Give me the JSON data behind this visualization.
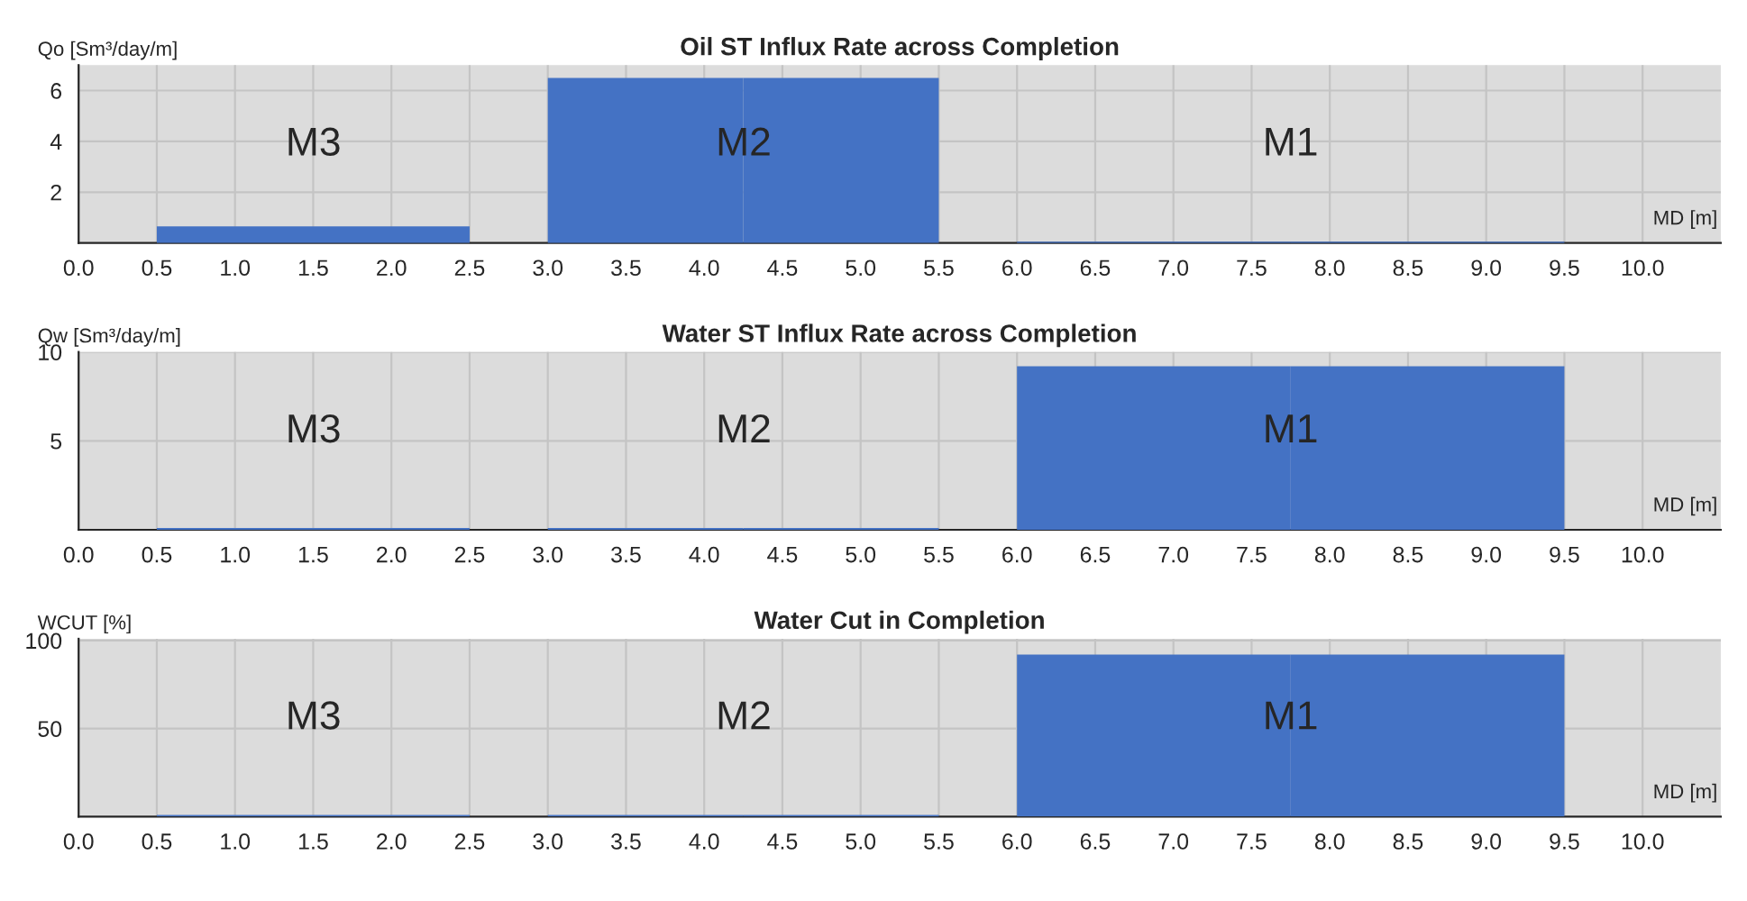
{
  "chart_data": [
    {
      "type": "histogram",
      "title": "Oil ST Influx Rate across Completion",
      "ylabel": "Qo [Sm³/day/m]",
      "xlabel": "MD [m]",
      "color": "#4472c4",
      "bins": [
        0.5,
        2.5,
        3.0,
        4.25,
        5.5,
        6.0,
        7.75,
        9.5
      ],
      "values": [
        0.65,
        0,
        6.5,
        6.5,
        0,
        0.05,
        0.05
      ],
      "xlim": [
        0,
        10.5
      ],
      "xticks": [
        {
          "value": 0,
          "label": "0.0"
        },
        {
          "value": 0.5,
          "label": "0.5"
        },
        {
          "value": 1,
          "label": "1.0"
        },
        {
          "value": 1.5,
          "label": "1.5"
        },
        {
          "value": 2,
          "label": "2.0"
        },
        {
          "value": 2.5,
          "label": "2.5"
        },
        {
          "value": 3,
          "label": "3.0"
        },
        {
          "value": 3.5,
          "label": "3.5"
        },
        {
          "value": 4,
          "label": "4.0"
        },
        {
          "value": 4.5,
          "label": "4.5"
        },
        {
          "value": 5,
          "label": "5.0"
        },
        {
          "value": 5.5,
          "label": "5.5"
        },
        {
          "value": 6,
          "label": "6.0"
        },
        {
          "value": 6.5,
          "label": "6.5"
        },
        {
          "value": 7,
          "label": "7.0"
        },
        {
          "value": 7.5,
          "label": "7.5"
        },
        {
          "value": 8,
          "label": "8.0"
        },
        {
          "value": 8.5,
          "label": "8.5"
        },
        {
          "value": 9,
          "label": "9.0"
        },
        {
          "value": 9.5,
          "label": "9.5"
        },
        {
          "value": 10,
          "label": "10.0"
        }
      ],
      "ylim": [
        0,
        7
      ],
      "yticks": [
        2,
        4,
        6
      ],
      "grid": true,
      "annotations": [
        "M3",
        "M2",
        "M1"
      ]
    },
    {
      "type": "histogram",
      "title": "Water ST Influx Rate across Completion",
      "ylabel": "Qw [Sm³/day/m]",
      "xlabel": "MD [m]",
      "color": "#4472c4",
      "bins": [
        0.5,
        2.5,
        3.0,
        4.25,
        5.5,
        6.0,
        7.75,
        9.5
      ],
      "values": [
        0.1,
        0,
        0.1,
        0.1,
        0,
        9.2,
        9.2
      ],
      "xlim": [
        0,
        10.5
      ],
      "xticks": [
        {
          "value": 0,
          "label": "0.0"
        },
        {
          "value": 0.5,
          "label": "0.5"
        },
        {
          "value": 1,
          "label": "1.0"
        },
        {
          "value": 1.5,
          "label": "1.5"
        },
        {
          "value": 2,
          "label": "2.0"
        },
        {
          "value": 2.5,
          "label": "2.5"
        },
        {
          "value": 3,
          "label": "3.0"
        },
        {
          "value": 3.5,
          "label": "3.5"
        },
        {
          "value": 4,
          "label": "4.0"
        },
        {
          "value": 4.5,
          "label": "4.5"
        },
        {
          "value": 5,
          "label": "5.0"
        },
        {
          "value": 5.5,
          "label": "5.5"
        },
        {
          "value": 6,
          "label": "6.0"
        },
        {
          "value": 6.5,
          "label": "6.5"
        },
        {
          "value": 7,
          "label": "7.0"
        },
        {
          "value": 7.5,
          "label": "7.5"
        },
        {
          "value": 8,
          "label": "8.0"
        },
        {
          "value": 8.5,
          "label": "8.5"
        },
        {
          "value": 9,
          "label": "9.0"
        },
        {
          "value": 9.5,
          "label": "9.5"
        },
        {
          "value": 10,
          "label": "10.0"
        }
      ],
      "ylim": [
        0,
        10
      ],
      "yticks": [
        5,
        10
      ],
      "grid": true,
      "annotations": [
        "M3",
        "M2",
        "M1"
      ]
    },
    {
      "type": "histogram",
      "title": "Water Cut in Completion",
      "ylabel": "WCUT [%]",
      "xlabel": "MD [m]",
      "color": "#4472c4",
      "bins": [
        0.5,
        2.5,
        3.0,
        4.25,
        5.5,
        6.0,
        7.75,
        9.5
      ],
      "values": [
        1,
        0,
        1,
        1,
        0,
        92,
        92
      ],
      "xlim": [
        0,
        10.5
      ],
      "xticks": [
        {
          "value": 0,
          "label": "0.0"
        },
        {
          "value": 0.5,
          "label": "0.5"
        },
        {
          "value": 1,
          "label": "1.0"
        },
        {
          "value": 1.5,
          "label": "1.5"
        },
        {
          "value": 2,
          "label": "2.0"
        },
        {
          "value": 2.5,
          "label": "2.5"
        },
        {
          "value": 3,
          "label": "3.0"
        },
        {
          "value": 3.5,
          "label": "3.5"
        },
        {
          "value": 4,
          "label": "4.0"
        },
        {
          "value": 4.5,
          "label": "4.5"
        },
        {
          "value": 5,
          "label": "5.0"
        },
        {
          "value": 5.5,
          "label": "5.5"
        },
        {
          "value": 6,
          "label": "6.0"
        },
        {
          "value": 6.5,
          "label": "6.5"
        },
        {
          "value": 7,
          "label": "7.0"
        },
        {
          "value": 7.5,
          "label": "7.5"
        },
        {
          "value": 8,
          "label": "8.0"
        },
        {
          "value": 8.5,
          "label": "8.5"
        },
        {
          "value": 9,
          "label": "9.0"
        },
        {
          "value": 9.5,
          "label": "9.5"
        },
        {
          "value": 10,
          "label": "10.0"
        }
      ],
      "ylim": [
        0,
        101
      ],
      "yticks": [
        50,
        100
      ],
      "grid": true,
      "annotations": [
        "M3",
        "M2",
        "M1"
      ]
    }
  ]
}
